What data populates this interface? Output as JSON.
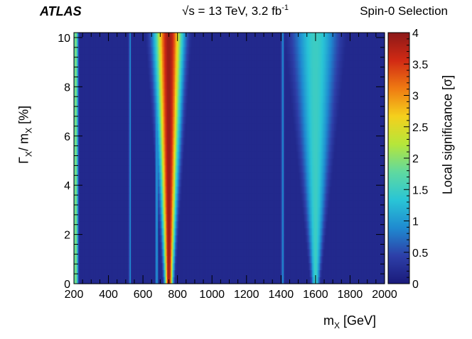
{
  "header": {
    "experiment": "ATLAS",
    "energy_main": "√s = 13 TeV, 3.2 fb",
    "energy_sup": "-1",
    "selection": "Spin-0 Selection"
  },
  "chart_data": {
    "type": "heatmap",
    "xlabel_main": "m",
    "xlabel_sub": "X",
    "xlabel_unit": " [GeV]",
    "ylabel_main": "Γ",
    "ylabel_sub1": "X",
    "ylabel_mid": "/ m",
    "ylabel_sub2": "X",
    "ylabel_unit": " [%]",
    "zlabel": "Local significance [σ]",
    "xlim": [
      200,
      2000
    ],
    "ylim": [
      0,
      10.2
    ],
    "zlim": [
      0,
      4
    ],
    "xticks": [
      "200",
      "400",
      "600",
      "800",
      "1000",
      "1200",
      "1400",
      "1600",
      "1800",
      "2000"
    ],
    "yticks": [
      "0",
      "2",
      "4",
      "6",
      "8",
      "10"
    ],
    "zticks": [
      "0",
      "0.5",
      "1",
      "1.5",
      "2",
      "2.5",
      "3",
      "3.5",
      "4"
    ],
    "features": [
      {
        "mass_center": 750,
        "mass_halfwidth_at_ymin": 15,
        "mass_halfwidth_at_ymax": 55,
        "peak_significance": 3.9
      },
      {
        "mass_center": 1600,
        "mass_halfwidth_at_ymin": 15,
        "mass_halfwidth_at_ymax": 90,
        "peak_significance": 1.5
      },
      {
        "mass_center": 210,
        "mass_halfwidth_at_ymin": 10,
        "mass_halfwidth_at_ymax": 10,
        "peak_significance": 2.0
      },
      {
        "mass_center": 680,
        "mass_halfwidth_at_ymin": 5,
        "mass_halfwidth_at_ymax": 6,
        "peak_significance": 1.1
      },
      {
        "mass_center": 525,
        "mass_halfwidth_at_ymin": 5,
        "mass_halfwidth_at_ymax": 5,
        "peak_significance": 0.9
      },
      {
        "mass_center": 1410,
        "mass_halfwidth_at_ymin": 6,
        "mass_halfwidth_at_ymax": 6,
        "peak_significance": 0.9
      }
    ],
    "colormap": [
      "#1a1a7a",
      "#2d3fa8",
      "#1f8ad0",
      "#29c5d6",
      "#5fd9a0",
      "#b6e63a",
      "#f5d01c",
      "#ef7a12",
      "#d12a14",
      "#8c1818"
    ]
  }
}
